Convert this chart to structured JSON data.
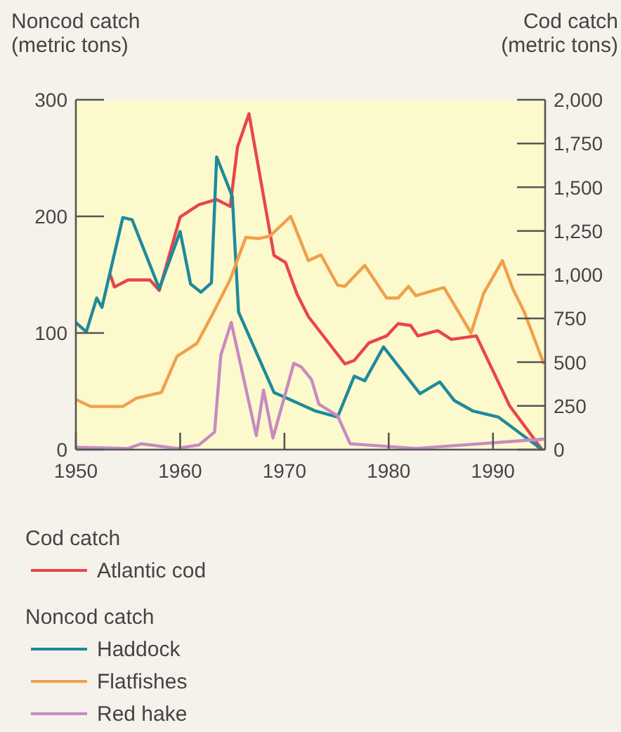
{
  "chart_data": {
    "type": "line",
    "ylabel": "Noncod catch\n(metric tons)",
    "y2label": "Cod catch\n(metric tons)",
    "xlim": [
      1950,
      1995
    ],
    "xticks": [
      1950,
      1960,
      1970,
      1980,
      1990
    ],
    "ylim": [
      0,
      300
    ],
    "yticks": [
      0,
      100,
      200,
      300
    ],
    "y2lim": [
      0,
      2000
    ],
    "y2ticks": [
      0,
      250,
      500,
      750,
      {
        "value": 1000,
        "label": "1,000"
      },
      {
        "value": 1250,
        "label": "1,250"
      },
      {
        "value": 1500,
        "label": "1,500"
      },
      {
        "value": 1750,
        "label": "1,750"
      },
      {
        "value": 2000,
        "label": "2,000"
      }
    ],
    "grid": false,
    "legend": "bottom",
    "marker": "none",
    "line_style": "solid",
    "annotations": [
      "Cod catch",
      "Noncod catch"
    ],
    "series": [
      {
        "name": "Atlantic cod",
        "color": "#e8454a",
        "axis": "y2",
        "x": [
          1953.3,
          1953.7,
          1955,
          1957.1,
          1958,
          1960,
          1961.8,
          1963.5,
          1964.8,
          1965.5,
          1966.6,
          1969,
          1970.1,
          1971.2,
          1972.3,
          1975.8,
          1976.7,
          1978.1,
          1979.8,
          1980.9,
          1982.1,
          1982.8,
          1984.7,
          1986,
          1988.4,
          1991.6,
          1994.7
        ],
        "values": [
          1000,
          930,
          970,
          970,
          910,
          1330,
          1400,
          1430,
          1390,
          1730,
          1920,
          1110,
          1070,
          890,
          760,
          490,
          510,
          610,
          650,
          720,
          710,
          650,
          680,
          630,
          650,
          250,
          0
        ]
      },
      {
        "name": "Haddock",
        "color": "#1f8a9a",
        "x": [
          1950,
          1951,
          1952,
          1952.5,
          1954.5,
          1955.4,
          1958,
          1960,
          1961,
          1962,
          1963,
          1963.5,
          1965,
          1965.6,
          1969,
          1970,
          1973,
          1975.1,
          1976.7,
          1977.7,
          1979.5,
          1983,
          1984.9,
          1986.3,
          1988.1,
          1990.5,
          1994.7
        ],
        "values": [
          109,
          101,
          130,
          122,
          199,
          197,
          138,
          187,
          142,
          135,
          143,
          251,
          217,
          118,
          49,
          45,
          33,
          28,
          63,
          59,
          88,
          48,
          58,
          42,
          33,
          28,
          0
        ]
      },
      {
        "name": "Flatfishes",
        "color": "#f0a04a",
        "x": [
          1950,
          1951.4,
          1954.5,
          1955.8,
          1958.2,
          1959.7,
          1961.6,
          1963.1,
          1964.8,
          1966.3,
          1967.5,
          1968.6,
          1970.6,
          1972.3,
          1973.5,
          1975.1,
          1975.8,
          1977.7,
          1979.8,
          1980.9,
          1981.9,
          1982.6,
          1985.3,
          1987.9,
          1989.1,
          1990.9,
          1991.9,
          1993,
          1994.9
        ],
        "values": [
          43,
          37,
          37,
          44,
          49,
          80,
          91,
          116,
          146,
          182,
          181,
          183,
          200,
          162,
          167,
          141,
          140,
          158,
          130,
          130,
          140,
          132,
          139,
          100,
          134,
          162,
          138,
          118,
          73
        ]
      },
      {
        "name": "Red hake",
        "color": "#c88ac0",
        "x": [
          1950,
          1955,
          1956.3,
          1959.7,
          1961.8,
          1963.3,
          1963.9,
          1964.9,
          1967.3,
          1968,
          1968.9,
          1970.9,
          1971.6,
          1972.6,
          1973.3,
          1975.1,
          1976.3,
          1982.6,
          1994.9
        ],
        "values": [
          2,
          1,
          5,
          1,
          4,
          15,
          81,
          109,
          12,
          51,
          10,
          74,
          71,
          60,
          39,
          29,
          5,
          1,
          9
        ]
      }
    ]
  }
}
